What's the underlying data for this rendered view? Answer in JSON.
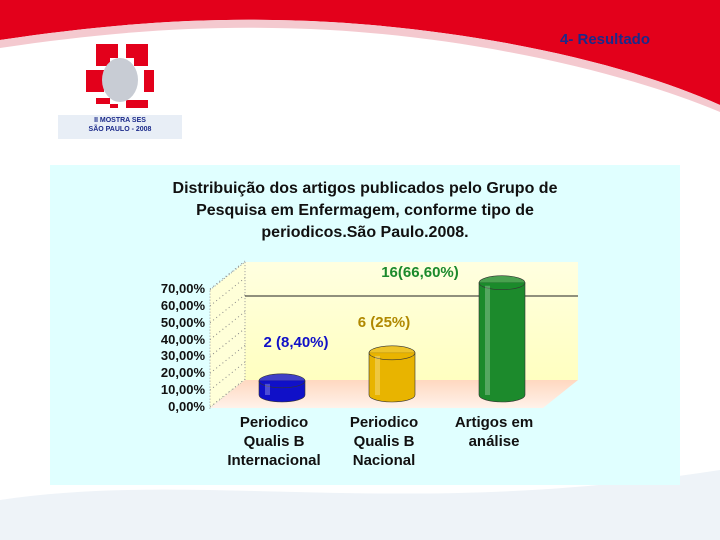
{
  "header": {
    "section": "4- Resultado",
    "logo_line1": "II MOSTRA SES",
    "logo_line2": "SÃO PAULO - 2008"
  },
  "chart_data": {
    "type": "bar",
    "title": "Distribuição dos artigos publicados pelo Grupo de Pesquisa em Enfermagem, conforme tipo de periodicos.São Paulo.2008.",
    "categories": [
      "Periodico Qualis B Internacional",
      "Periodico Qualis B Nacional",
      "Artigos em análise"
    ],
    "values": [
      8.4,
      25,
      66.6
    ],
    "value_labels": [
      "2 (8,40%)",
      "6 (25%)",
      "16(66,60%)"
    ],
    "colors": [
      "#1010c8",
      "#e8b400",
      "#1c8a2c"
    ],
    "ylim": [
      0,
      70
    ],
    "yticks": [
      {
        "value": 0,
        "label": "0,00%"
      },
      {
        "value": 10,
        "label": "10,00%"
      },
      {
        "value": 20,
        "label": "20,00%"
      },
      {
        "value": 30,
        "label": "30,00%"
      },
      {
        "value": 40,
        "label": "40,00%"
      },
      {
        "value": 50,
        "label": "50,00%"
      },
      {
        "value": 60,
        "label": "60,00%"
      },
      {
        "value": 70,
        "label": "70,00%"
      }
    ]
  }
}
